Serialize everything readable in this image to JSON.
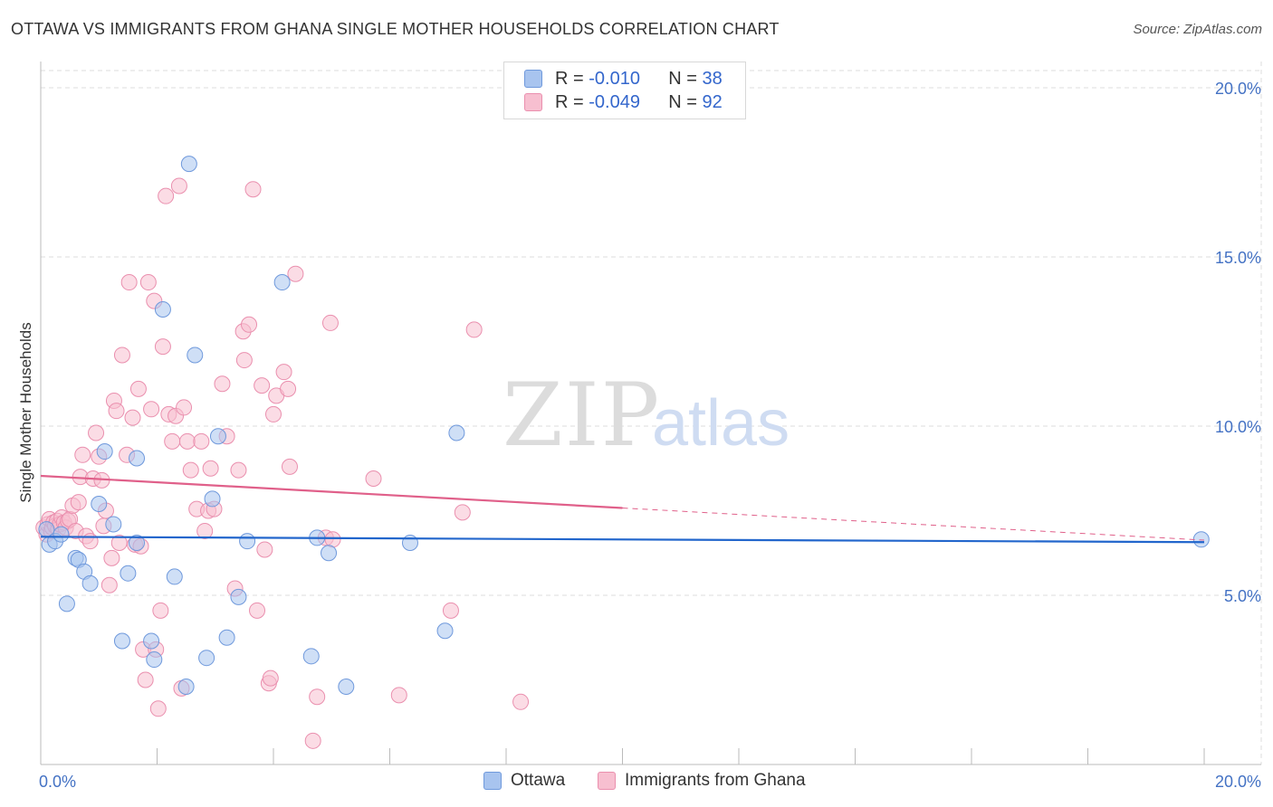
{
  "title": "OTTAWA VS IMMIGRANTS FROM GHANA SINGLE MOTHER HOUSEHOLDS CORRELATION CHART",
  "source": "Source: ZipAtlas.com",
  "watermark": {
    "zip": "ZIP",
    "atlas": "atlas"
  },
  "legend": {
    "rows": [
      {
        "r_label": "R =",
        "r_value": "-0.010",
        "n_label": "N =",
        "n_value": "38",
        "color": "#a8c4ef",
        "border": "#6f99dc"
      },
      {
        "r_label": "R =",
        "r_value": "-0.049",
        "n_label": "N =",
        "n_value": "92",
        "color": "#f7bfd0",
        "border": "#ea8fae"
      }
    ]
  },
  "bottom_legend": {
    "series1": "Ottawa",
    "series2": "Immigrants from Ghana"
  },
  "colors": {
    "ottawa_fill": "#a8c4ef",
    "ottawa_stroke": "#6f99dc",
    "ottawa_line": "#2266cc",
    "ghana_fill": "#f7bfd0",
    "ghana_stroke": "#ea8fae",
    "ghana_line": "#e0608a",
    "grid": "#dddddd",
    "tick_text": "#4472c4"
  },
  "chart_data": {
    "type": "scatter",
    "title": "OTTAWA VS IMMIGRANTS FROM GHANA SINGLE MOTHER HOUSEHOLDS CORRELATION CHART",
    "xlabel": "",
    "ylabel": "Single Mother Households",
    "xlim": [
      0,
      0.2
    ],
    "ylim": [
      0,
      0.2
    ],
    "x_tick_labels": [
      "0.0%",
      "20.0%"
    ],
    "y_tick_labels": [
      "5.0%",
      "10.0%",
      "15.0%",
      "20.0%"
    ],
    "y_ticks": [
      0.05,
      0.1,
      0.15,
      0.2
    ],
    "series": [
      {
        "name": "Ottawa",
        "r": -0.01,
        "n": 38,
        "trend": {
          "x": [
            0,
            0.2
          ],
          "y": [
            0.0673,
            0.0657
          ]
        },
        "points": [
          [
            0.001,
            0.0695
          ],
          [
            0.0015,
            0.065
          ],
          [
            0.0025,
            0.066
          ],
          [
            0.0035,
            0.068
          ],
          [
            0.0045,
            0.0475
          ],
          [
            0.006,
            0.061
          ],
          [
            0.0065,
            0.0605
          ],
          [
            0.0075,
            0.057
          ],
          [
            0.0085,
            0.0535
          ],
          [
            0.01,
            0.077
          ],
          [
            0.011,
            0.0925
          ],
          [
            0.0125,
            0.071
          ],
          [
            0.014,
            0.0365
          ],
          [
            0.015,
            0.0565
          ],
          [
            0.0165,
            0.0655
          ],
          [
            0.0165,
            0.0905
          ],
          [
            0.019,
            0.0365
          ],
          [
            0.0195,
            0.031
          ],
          [
            0.021,
            0.1345
          ],
          [
            0.023,
            0.0555
          ],
          [
            0.025,
            0.023
          ],
          [
            0.0255,
            0.1775
          ],
          [
            0.0265,
            0.121
          ],
          [
            0.0285,
            0.0315
          ],
          [
            0.0295,
            0.0785
          ],
          [
            0.0305,
            0.097
          ],
          [
            0.032,
            0.0375
          ],
          [
            0.034,
            0.0495
          ],
          [
            0.0355,
            0.066
          ],
          [
            0.0415,
            0.1425
          ],
          [
            0.0465,
            0.032
          ],
          [
            0.0475,
            0.067
          ],
          [
            0.0495,
            0.0625
          ],
          [
            0.0525,
            0.023
          ],
          [
            0.0635,
            0.0655
          ],
          [
            0.0695,
            0.0395
          ],
          [
            0.0715,
            0.098
          ],
          [
            0.1995,
            0.0665
          ]
        ]
      },
      {
        "name": "Immigrants from Ghana",
        "r": -0.049,
        "n": 92,
        "trend": {
          "x": [
            0,
            0.2
          ],
          "y": [
            0.0853,
            0.0663
          ]
        },
        "trend_solid_until_x": 0.1,
        "points": [
          [
            0.0005,
            0.07
          ],
          [
            0.001,
            0.068
          ],
          [
            0.0012,
            0.071
          ],
          [
            0.0015,
            0.0725
          ],
          [
            0.0018,
            0.069
          ],
          [
            0.002,
            0.07
          ],
          [
            0.0022,
            0.0715
          ],
          [
            0.0025,
            0.0705
          ],
          [
            0.0028,
            0.072
          ],
          [
            0.003,
            0.0695
          ],
          [
            0.0033,
            0.071
          ],
          [
            0.0036,
            0.073
          ],
          [
            0.004,
            0.0715
          ],
          [
            0.0043,
            0.07
          ],
          [
            0.0047,
            0.072
          ],
          [
            0.005,
            0.0725
          ],
          [
            0.0055,
            0.0765
          ],
          [
            0.006,
            0.069
          ],
          [
            0.0065,
            0.0775
          ],
          [
            0.0068,
            0.085
          ],
          [
            0.0072,
            0.0915
          ],
          [
            0.0078,
            0.0675
          ],
          [
            0.0085,
            0.066
          ],
          [
            0.009,
            0.0845
          ],
          [
            0.0095,
            0.098
          ],
          [
            0.01,
            0.091
          ],
          [
            0.0105,
            0.084
          ],
          [
            0.0108,
            0.0705
          ],
          [
            0.0112,
            0.075
          ],
          [
            0.0118,
            0.053
          ],
          [
            0.0122,
            0.061
          ],
          [
            0.0126,
            0.1075
          ],
          [
            0.013,
            0.1045
          ],
          [
            0.0135,
            0.0655
          ],
          [
            0.014,
            0.121
          ],
          [
            0.0148,
            0.0915
          ],
          [
            0.0152,
            0.1425
          ],
          [
            0.0158,
            0.1025
          ],
          [
            0.0162,
            0.065
          ],
          [
            0.0168,
            0.111
          ],
          [
            0.0172,
            0.0645
          ],
          [
            0.0176,
            0.034
          ],
          [
            0.018,
            0.025
          ],
          [
            0.0185,
            0.1425
          ],
          [
            0.019,
            0.105
          ],
          [
            0.0195,
            0.137
          ],
          [
            0.0198,
            0.034
          ],
          [
            0.0202,
            0.0165
          ],
          [
            0.0206,
            0.0455
          ],
          [
            0.021,
            0.1235
          ],
          [
            0.0215,
            0.168
          ],
          [
            0.022,
            0.1035
          ],
          [
            0.0226,
            0.0955
          ],
          [
            0.0232,
            0.103
          ],
          [
            0.0238,
            0.171
          ],
          [
            0.0242,
            0.0225
          ],
          [
            0.0246,
            0.1055
          ],
          [
            0.0252,
            0.0955
          ],
          [
            0.0258,
            0.087
          ],
          [
            0.0268,
            0.0755
          ],
          [
            0.0276,
            0.0955
          ],
          [
            0.0282,
            0.069
          ],
          [
            0.0288,
            0.075
          ],
          [
            0.0292,
            0.0875
          ],
          [
            0.0298,
            0.0755
          ],
          [
            0.0312,
            0.1125
          ],
          [
            0.032,
            0.097
          ],
          [
            0.0334,
            0.052
          ],
          [
            0.034,
            0.087
          ],
          [
            0.0348,
            0.128
          ],
          [
            0.035,
            0.1195
          ],
          [
            0.0358,
            0.13
          ],
          [
            0.0365,
            0.17
          ],
          [
            0.0372,
            0.0455
          ],
          [
            0.038,
            0.112
          ],
          [
            0.0385,
            0.0635
          ],
          [
            0.0392,
            0.024
          ],
          [
            0.0395,
            0.0255
          ],
          [
            0.04,
            0.1035
          ],
          [
            0.0405,
            0.109
          ],
          [
            0.0418,
            0.116
          ],
          [
            0.0425,
            0.111
          ],
          [
            0.0428,
            0.088
          ],
          [
            0.0438,
            0.145
          ],
          [
            0.0468,
            0.007
          ],
          [
            0.0475,
            0.02
          ],
          [
            0.049,
            0.067
          ],
          [
            0.0498,
            0.1305
          ],
          [
            0.0502,
            0.0665
          ],
          [
            0.0572,
            0.0845
          ],
          [
            0.0616,
            0.0205
          ],
          [
            0.0705,
            0.0455
          ],
          [
            0.0725,
            0.0745
          ],
          [
            0.0745,
            0.1285
          ],
          [
            0.0825,
            0.0185
          ]
        ]
      }
    ]
  }
}
